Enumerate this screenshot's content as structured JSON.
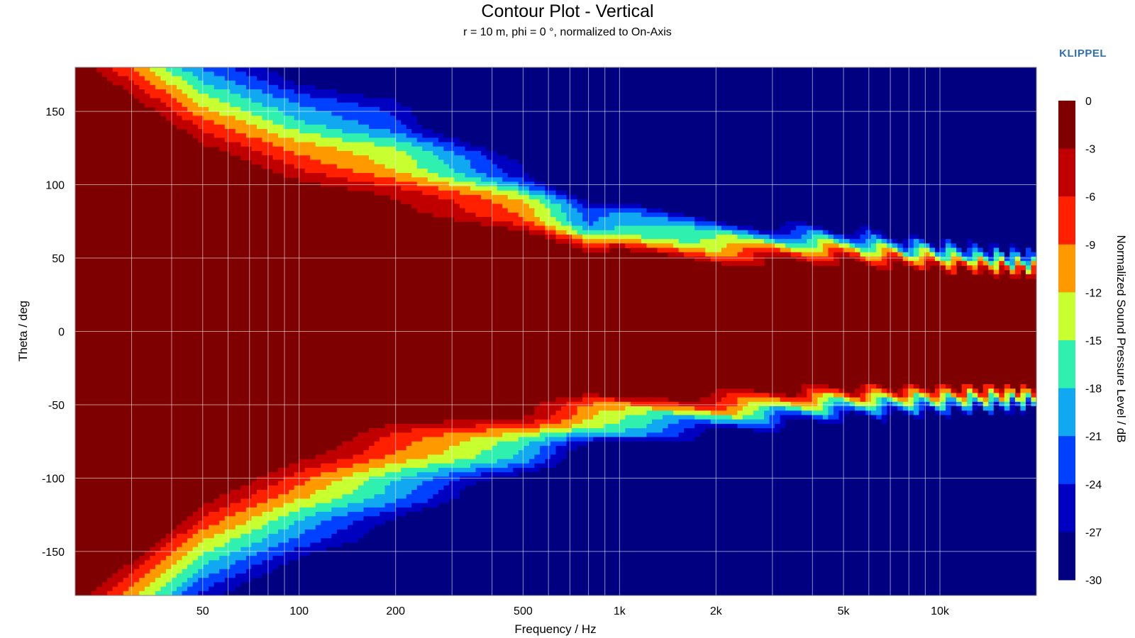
{
  "chart_data": {
    "type": "heatmap",
    "title": "Contour Plot - Vertical",
    "subtitle": "r = 10 m, phi = 0 °, normalized to On-Axis",
    "xlabel": "Frequency / Hz",
    "ylabel": "Theta / deg",
    "colorbar_label": "Normalized Sound Pressure Level / dB",
    "x_scale": "log",
    "xlim": [
      20,
      20000
    ],
    "ylim": [
      -180,
      180
    ],
    "x_ticks": [
      {
        "value": 50,
        "label": "50"
      },
      {
        "value": 100,
        "label": "100"
      },
      {
        "value": 200,
        "label": "200"
      },
      {
        "value": 500,
        "label": "500"
      },
      {
        "value": 1000,
        "label": "1k"
      },
      {
        "value": 2000,
        "label": "2k"
      },
      {
        "value": 5000,
        "label": "5k"
      },
      {
        "value": 10000,
        "label": "10k"
      }
    ],
    "y_ticks": [
      150,
      100,
      50,
      0,
      -50,
      -100,
      -150
    ],
    "colorbar_ticks": [
      "0",
      "-3",
      "-6",
      "-9",
      "-12",
      "-15",
      "-18",
      "-21",
      "-24",
      "-27",
      "-30"
    ],
    "colorbar_colors": [
      "#7f0000",
      "#c00000",
      "#ff2000",
      "#ff9900",
      "#c8ff30",
      "#30f0b0",
      "#10a8f0",
      "#0040ff",
      "#0000c0",
      "#000080"
    ],
    "grid": true,
    "upper_beam_edge_deg": [
      {
        "f": 20,
        "edge_deg": 180
      },
      {
        "f": 50,
        "edge_deg": 120
      },
      {
        "f": 100,
        "edge_deg": 95
      },
      {
        "f": 200,
        "edge_deg": 80
      },
      {
        "f": 500,
        "edge_deg": 65
      },
      {
        "f": 800,
        "edge_deg": 45
      },
      {
        "f": 1000,
        "edge_deg": 50
      },
      {
        "f": 2000,
        "edge_deg": 45
      },
      {
        "f": 5000,
        "edge_deg": 45
      },
      {
        "f": 10000,
        "edge_deg": 40
      },
      {
        "f": 20000,
        "edge_deg": 35
      }
    ],
    "lower_beam_edge_deg": [
      {
        "f": 20,
        "edge_deg": -180
      },
      {
        "f": 50,
        "edge_deg": -110
      },
      {
        "f": 100,
        "edge_deg": -80
      },
      {
        "f": 200,
        "edge_deg": -55
      },
      {
        "f": 500,
        "edge_deg": -50
      },
      {
        "f": 800,
        "edge_deg": -40
      },
      {
        "f": 1000,
        "edge_deg": -40
      },
      {
        "f": 2000,
        "edge_deg": -40
      },
      {
        "f": 5000,
        "edge_deg": -35
      },
      {
        "f": 10000,
        "edge_deg": -35
      },
      {
        "f": 20000,
        "edge_deg": -35
      }
    ]
  },
  "branding": {
    "logo_text": "KLIPPEL"
  }
}
